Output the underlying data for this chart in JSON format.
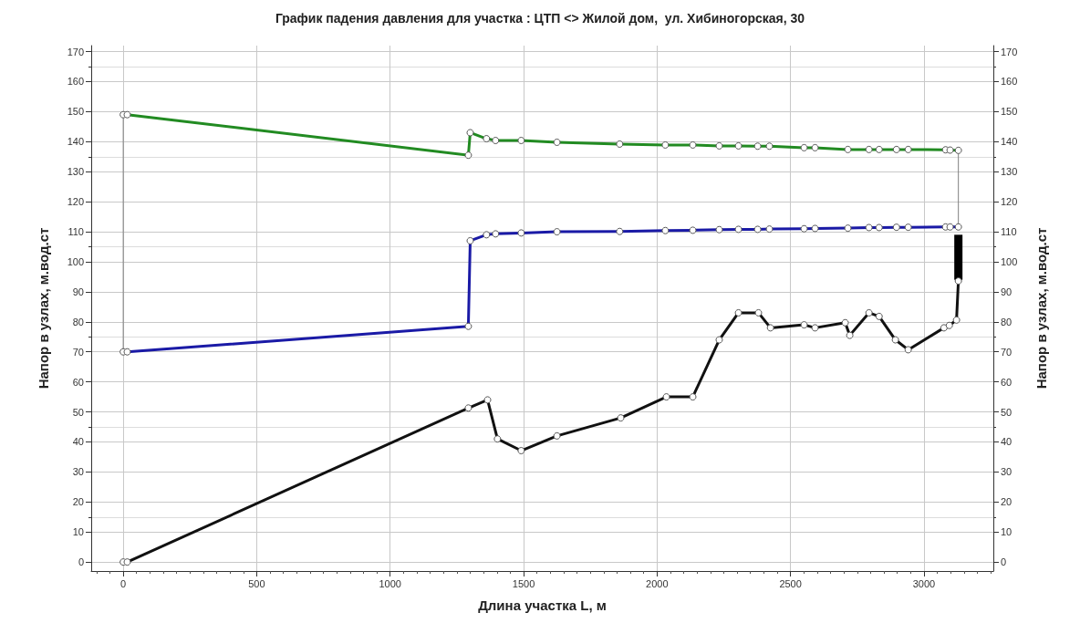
{
  "chart_data": {
    "type": "line",
    "title": "График падения давления для участка : ЦТП <> Жилой дом,  ул. Хибиногорская, 30",
    "xlabel": "Длина участка L, м",
    "ylabel": "Напор в узлах, м.вод.ст",
    "y2label": "Напор в узлах, м.вод.ст",
    "xlim": [
      -120,
      3260
    ],
    "xticks": [
      0,
      500,
      1000,
      1500,
      2000,
      2500,
      3000
    ],
    "ylim": [
      -3,
      172
    ],
    "yticks": [
      0,
      10,
      20,
      30,
      40,
      50,
      60,
      70,
      80,
      90,
      100,
      110,
      120,
      130,
      140,
      150,
      160,
      170
    ],
    "y2lim": [
      -3,
      172
    ],
    "y2ticks": [
      0,
      10,
      20,
      30,
      40,
      50,
      60,
      70,
      80,
      90,
      100,
      110,
      120,
      130,
      140,
      150,
      160,
      170
    ],
    "grid": true,
    "marker": "circle",
    "series": [
      {
        "color": "#808080",
        "marker": "none",
        "x": [
          0,
          0
        ],
        "values": [
          149,
          70
        ]
      },
      {
        "color": "#808080",
        "marker": "none",
        "x": [
          3129,
          3129
        ],
        "values": [
          137.1,
          111.6
        ]
      },
      {
        "color": "#228b22",
        "x": [
          0,
          15,
          1293,
          1300,
          1361,
          1395,
          1491,
          1625,
          1860,
          2031,
          2134,
          2233,
          2305,
          2377,
          2421,
          2551,
          2592,
          2715,
          2794,
          2832,
          2897,
          2941,
          3081,
          3098,
          3129
        ],
        "values": [
          149,
          149,
          135.5,
          143,
          141,
          140.4,
          140.4,
          139.8,
          139.2,
          138.9,
          138.9,
          138.6,
          138.6,
          138.5,
          138.5,
          138,
          138,
          137.4,
          137.4,
          137.4,
          137.4,
          137.4,
          137.3,
          137.2,
          137.1
        ]
      },
      {
        "color": "#1a1aa6",
        "x": [
          0,
          15,
          1293,
          1300,
          1361,
          1395,
          1491,
          1625,
          1860,
          2031,
          2134,
          2233,
          2305,
          2377,
          2421,
          2551,
          2592,
          2715,
          2794,
          2832,
          2897,
          2941,
          3081,
          3098,
          3129
        ],
        "values": [
          70,
          70,
          78.5,
          107,
          109,
          109.3,
          109.6,
          110,
          110.1,
          110.4,
          110.5,
          110.7,
          110.8,
          110.8,
          110.9,
          111,
          111.1,
          111.2,
          111.4,
          111.4,
          111.5,
          111.5,
          111.6,
          111.6,
          111.6
        ]
      },
      {
        "color": "#111111",
        "x": [
          0,
          15,
          1293,
          1365,
          1402,
          1491,
          1625,
          1864,
          2035,
          2134,
          2233,
          2305,
          2380,
          2425,
          2551,
          2592,
          2705,
          2722,
          2794,
          2832,
          2893,
          2941,
          3075,
          3095,
          3122,
          3129
        ],
        "values": [
          0,
          0,
          51.3,
          54,
          41,
          37.1,
          42,
          48,
          55,
          55,
          74,
          83,
          83,
          78,
          79,
          78,
          79.7,
          75.5,
          83,
          81.8,
          74,
          70.7,
          78,
          78.8,
          80.6,
          93.6
        ]
      },
      {
        "type": "bar",
        "color": "#000000",
        "x": [
          3129
        ],
        "base": [
          94
        ],
        "values": [
          15
        ]
      }
    ]
  }
}
